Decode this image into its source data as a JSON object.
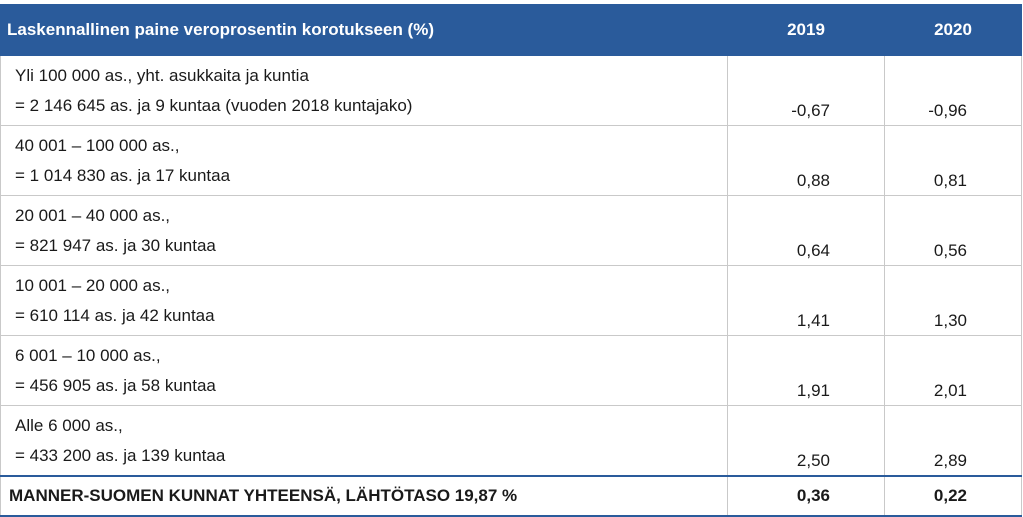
{
  "table": {
    "header": {
      "title": "Laskennallinen paine veroprosentin korotukseen (%)",
      "col_2019": "2019",
      "col_2020": "2020"
    },
    "rows": [
      {
        "line1": "Yli 100 000 as., yht. asukkaita ja kuntia",
        "line2": "= 2 146 645 as. ja 9 kuntaa (vuoden 2018 kuntajako)",
        "v2019": "-0,67",
        "v2020": "-0,96"
      },
      {
        "line1": "40 001 – 100 000 as.,",
        "line2": "= 1 014 830 as. ja 17 kuntaa",
        "v2019": "0,88",
        "v2020": "0,81"
      },
      {
        "line1": "20 001 – 40 000 as.,",
        "line2": "= 821 947 as. ja 30 kuntaa",
        "v2019": "0,64",
        "v2020": "0,56"
      },
      {
        "line1": "10 001 – 20 000 as.,",
        "line2": "= 610 114 as. ja 42 kuntaa",
        "v2019": "1,41",
        "v2020": "1,30"
      },
      {
        "line1": "6 001 – 10 000 as.,",
        "line2": "= 456 905 as. ja 58 kuntaa",
        "v2019": "1,91",
        "v2020": "2,01"
      },
      {
        "line1": "Alle 6 000 as.,",
        "line2": "= 433 200 as. ja 139 kuntaa",
        "v2019": "2,50",
        "v2020": "2,89"
      }
    ],
    "total": {
      "label": "MANNER-SUOMEN KUNNAT YHTEENSÄ, LÄHTÖTASO 19,87 %",
      "v2019": "0,36",
      "v2020": "0,22"
    }
  }
}
